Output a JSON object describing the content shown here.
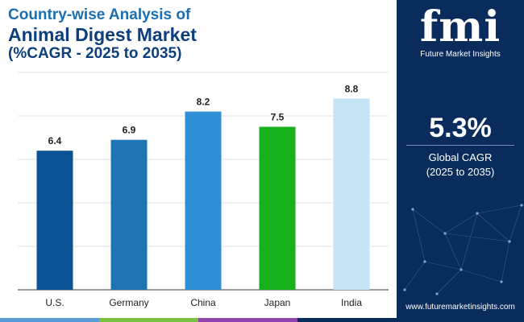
{
  "title": {
    "line1": "Country-wise Analysis of",
    "line2": "Animal Digest Market",
    "line3": "(%CAGR - 2025 to 2035)"
  },
  "chart_data": {
    "type": "bar",
    "categories": [
      "U.S.",
      "Germany",
      "China",
      "Japan",
      "India"
    ],
    "values": [
      6.4,
      6.9,
      8.2,
      7.5,
      8.8
    ],
    "data_labels": [
      "6.4",
      "6.9",
      "8.2",
      "7.5",
      "8.8"
    ],
    "colors": [
      "#0b5394",
      "#1f74b4",
      "#2f90d6",
      "#18b11e",
      "#c6e2f5"
    ],
    "ylim": [
      0,
      10
    ],
    "grid": true,
    "xlabel": "",
    "ylabel": ""
  },
  "sidebar": {
    "brand_mark": "fmi",
    "brand_name": "Future Market Insights",
    "cagr_value": "5.3%",
    "cagr_label": "Global CAGR",
    "cagr_period": "(2025 to 2035)",
    "url": "www.futuremarketinsights.com"
  },
  "colors": {
    "title_light": "#1b6fb0",
    "title_dark": "#0c3f7c",
    "sidebar_bg": "#0a2c5c",
    "bottom_bar": [
      "#5b9bd5",
      "#7cc242",
      "#8e44ad",
      "#0a2c5c"
    ]
  }
}
